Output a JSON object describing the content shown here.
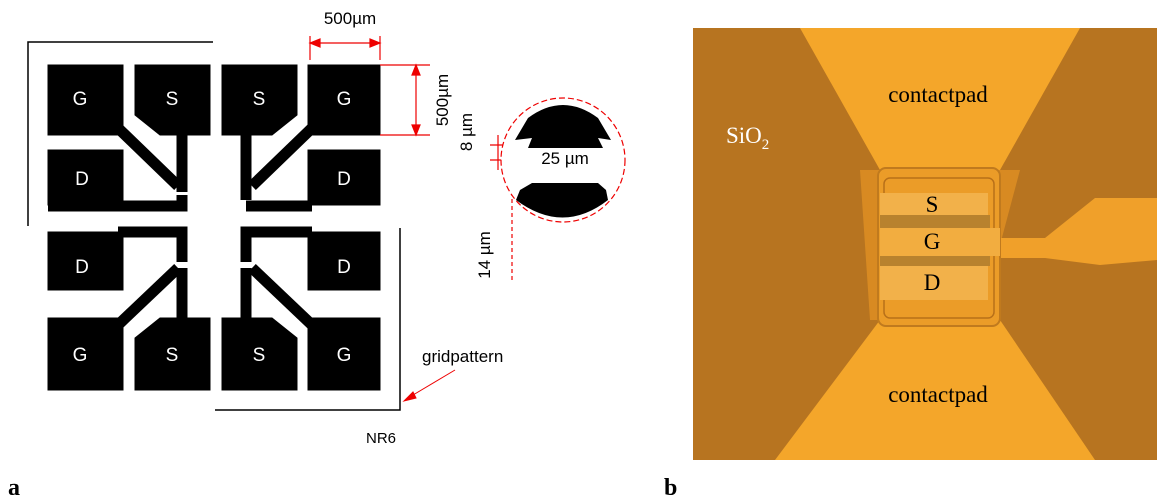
{
  "panel_a": {
    "label": "a",
    "pads": [
      "G",
      "S",
      "S",
      "G",
      "D",
      "D",
      "D",
      "D",
      "G",
      "S",
      "S",
      "G"
    ],
    "dimensions": {
      "pad_width": "500µm",
      "pad_height": "500µm",
      "gap": "8 µm",
      "channel": "25 µm",
      "lead": "14 µm"
    },
    "grid_pattern": "gridpattern",
    "mask_name": "NR6"
  },
  "panel_b": {
    "label": "b",
    "substrate": {
      "base": "SiO",
      "subscript": "2"
    },
    "top_pad": "contactpad",
    "electrodes": [
      "S",
      "G",
      "D"
    ],
    "bottom_pad": "contactpad"
  }
}
